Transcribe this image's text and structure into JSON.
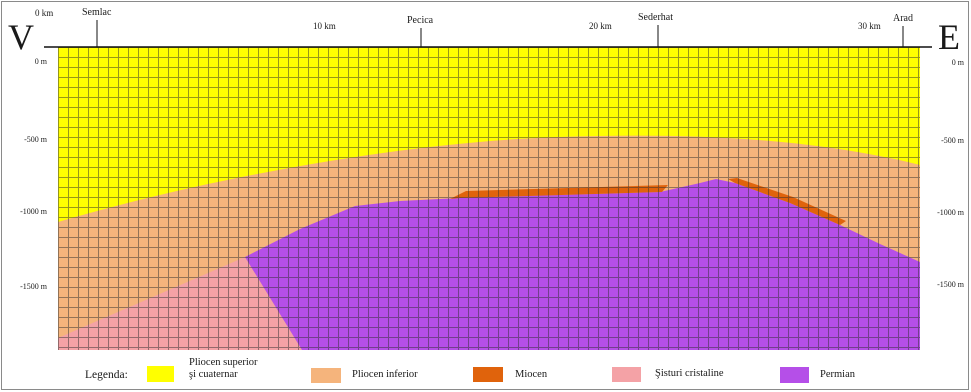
{
  "orientation": {
    "west": "V",
    "east": "E"
  },
  "distance_axis": {
    "labels": [
      "0 km",
      "10 km",
      "20 km",
      "30 km"
    ]
  },
  "localities": [
    "Semlac",
    "Pecica",
    "Sederhat",
    "Arad"
  ],
  "depth_axis": {
    "left": [
      "0 m",
      "-500 m",
      "-1000 m",
      "-1500 m"
    ],
    "right": [
      "0 m",
      "-500 m",
      "-1000 m",
      "-1500 m"
    ]
  },
  "legend": {
    "title": "Legenda:",
    "items": [
      {
        "label": "Pliocen superior\nşi cuaternar",
        "color": "#ffff00"
      },
      {
        "label": "Pliocen inferior",
        "color": "#f5b47c"
      },
      {
        "label": "Miocen",
        "color": "#e0630c"
      },
      {
        "label": "Şisturi cristaline",
        "color": "#f4a2a6"
      },
      {
        "label": "Permian",
        "color": "#b54fe8"
      }
    ]
  }
}
